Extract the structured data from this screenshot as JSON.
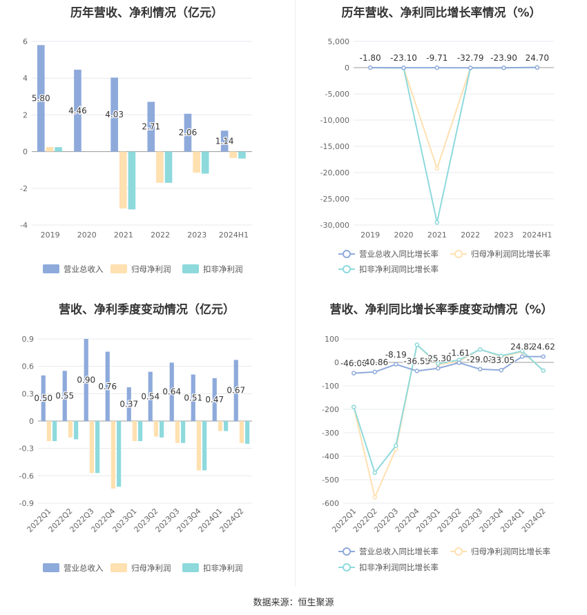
{
  "source": "数据来源：恒生聚源",
  "colors": {
    "revenue": "#8eaadb",
    "net_profit": "#ffe0b0",
    "deducted_profit": "#8dd9dc",
    "grid": "#e6e8ec",
    "axis": "#666666"
  },
  "chart_data": [
    {
      "id": "annual_amount",
      "type": "bar",
      "title": "历年营收、净利情况（亿元）",
      "categories": [
        "2019",
        "2020",
        "2021",
        "2022",
        "2023",
        "2024H1"
      ],
      "yticks": [
        "6",
        "4",
        "2",
        "0",
        "-2",
        "-4"
      ],
      "ylim": [
        -4,
        6
      ],
      "series": [
        {
          "name": "营业总收入",
          "values": [
            5.8,
            4.46,
            4.03,
            2.71,
            2.06,
            1.14
          ],
          "labels": [
            "5.80",
            "4.46",
            "4.03",
            "2.71",
            "2.06",
            "1.14"
          ]
        },
        {
          "name": "归母净利润",
          "values": [
            0.25,
            0,
            -3.1,
            -1.7,
            -1.15,
            -0.35
          ]
        },
        {
          "name": "扣非净利润",
          "values": [
            0.24,
            0,
            -3.15,
            -1.7,
            -1.2,
            -0.38
          ]
        }
      ],
      "legend": "bottom"
    },
    {
      "id": "annual_growth",
      "type": "line",
      "title": "历年营收、净利同比增长率情况（%）",
      "categories": [
        "2019",
        "2020",
        "2021",
        "2022",
        "2023",
        "2024H1"
      ],
      "yticks": [
        "5,000",
        "0",
        "-5,000",
        "-10,000",
        "-15,000",
        "-20,000",
        "-25,000",
        "-30,000"
      ],
      "ylim": [
        -30000,
        5000
      ],
      "series": [
        {
          "name": "营业总收入同比增长率",
          "values": [
            -1.8,
            -23.1,
            -9.71,
            -32.79,
            -23.9,
            24.7
          ],
          "labels": [
            "-1.80",
            "-23.10",
            "-9.71",
            "-32.79",
            "-23.90",
            "24.70"
          ]
        },
        {
          "name": "归母净利润同比增长率",
          "values": [
            0,
            -60,
            -19200,
            -60,
            -30,
            40
          ]
        },
        {
          "name": "扣非净利润同比增长率",
          "values": [
            0,
            -60,
            -29500,
            -60,
            -30,
            40
          ]
        }
      ],
      "legend": "bottom"
    },
    {
      "id": "quarterly_amount",
      "type": "bar",
      "title": "营收、净利季度变动情况（亿元）",
      "categories": [
        "2022Q1",
        "2022Q2",
        "2022Q3",
        "2022Q4",
        "2023Q1",
        "2023Q2",
        "2023Q3",
        "2023Q4",
        "2024Q1",
        "2024Q2"
      ],
      "yticks": [
        "0.9",
        "0.6",
        "0.3",
        "0",
        "-0.3",
        "-0.6",
        "-0.9"
      ],
      "ylim": [
        -0.9,
        0.9
      ],
      "series": [
        {
          "name": "营业总收入",
          "values": [
            0.5,
            0.55,
            0.9,
            0.76,
            0.37,
            0.54,
            0.64,
            0.51,
            0.47,
            0.67
          ],
          "labels": [
            "0.50",
            "0.55",
            "0.90",
            "0.76",
            "0.37",
            "0.54",
            "0.64",
            "0.51",
            "0.47",
            "0.67"
          ]
        },
        {
          "name": "归母净利润",
          "values": [
            -0.22,
            -0.18,
            -0.57,
            -0.74,
            -0.22,
            -0.17,
            -0.24,
            -0.54,
            -0.11,
            -0.24
          ]
        },
        {
          "name": "扣非净利润",
          "values": [
            -0.22,
            -0.2,
            -0.57,
            -0.72,
            -0.22,
            -0.18,
            -0.24,
            -0.54,
            -0.11,
            -0.25
          ]
        }
      ],
      "legend": "bottom"
    },
    {
      "id": "quarterly_growth",
      "type": "line",
      "title": "营收、净利同比增长率季度变动情况（%）",
      "categories": [
        "2022Q1",
        "2022Q2",
        "2022Q3",
        "2022Q4",
        "2023Q1",
        "2023Q2",
        "2023Q3",
        "2023Q4",
        "2024Q1",
        "2024Q2"
      ],
      "yticks": [
        "100",
        "0",
        "-100",
        "-200",
        "-300",
        "-400",
        "-500",
        "-600"
      ],
      "ylim": [
        -600,
        100
      ],
      "series": [
        {
          "name": "营业总收入同比增长率",
          "values": [
            -46.0,
            -40.86,
            -8.19,
            -36.55,
            -25.3,
            -1.61,
            -29.03,
            -33.05,
            24.82,
            24.62
          ],
          "labels": [
            "-46.00",
            "-40.86",
            "-8.19",
            "-36.55",
            "-25.30",
            "-1.61",
            "-29.03",
            "-33.05",
            "24.82",
            "24.62"
          ]
        },
        {
          "name": "归母净利润同比增长率",
          "values": [
            -190,
            -575,
            -370,
            75,
            -10,
            5,
            55,
            25,
            45,
            -35
          ]
        },
        {
          "name": "扣非净利润同比增长率",
          "values": [
            -190,
            -470,
            -355,
            75,
            -5,
            10,
            55,
            28,
            48,
            -35
          ]
        }
      ],
      "legend": "bottom"
    }
  ]
}
